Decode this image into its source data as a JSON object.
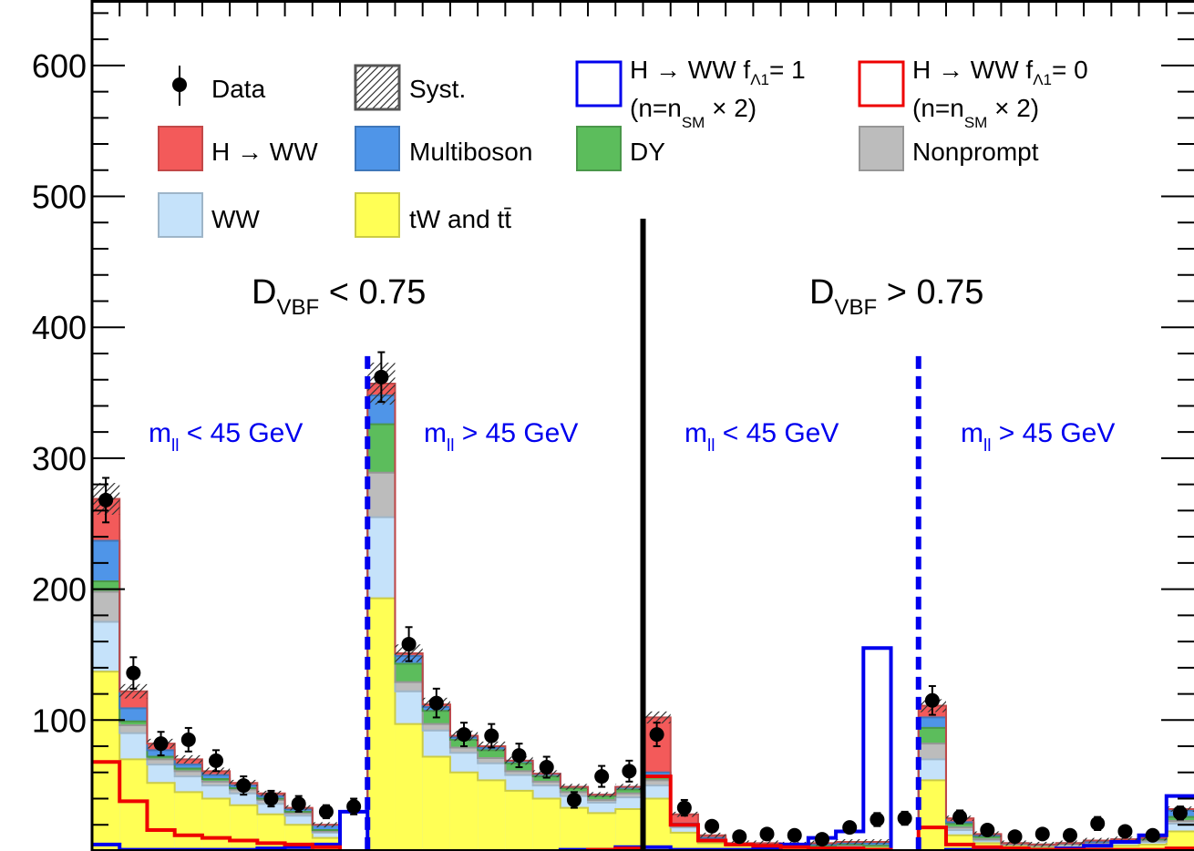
{
  "chart_data": {
    "type": "bar",
    "stacked": true,
    "title": "",
    "xlabel": "",
    "ylabel": "",
    "ylim": [
      0,
      650
    ],
    "y_ticks": [
      100,
      200,
      300,
      400,
      500,
      600
    ],
    "n_bins": 40,
    "legend": {
      "placement": "top",
      "entries": [
        {
          "key": "data",
          "label": "Data",
          "style": "marker"
        },
        {
          "key": "syst",
          "label": "Syst.",
          "style": "hatch"
        },
        {
          "key": "sig1",
          "label": "H → WW f",
          "sub": "Λ1",
          "suffix": "= 1",
          "line2": "(n=n",
          "line2_sub": "SM",
          "line2_suffix": " × 2)",
          "style": "line",
          "color": "#0000ee"
        },
        {
          "key": "sig0",
          "label": "H → WW f",
          "sub": "Λ1",
          "suffix": "= 0",
          "line2": "(n=n",
          "line2_sub": "SM",
          "line2_suffix": " × 2)",
          "style": "line",
          "color": "#ee0000"
        },
        {
          "key": "hww",
          "label": "H → WW",
          "style": "fill",
          "color": "#f35a5a"
        },
        {
          "key": "multiboson",
          "label": "Multiboson",
          "style": "fill",
          "color": "#4f95e8"
        },
        {
          "key": "dy",
          "label": "DY",
          "style": "fill",
          "color": "#5cbd5c"
        },
        {
          "key": "nonprompt",
          "label": "Nonprompt",
          "style": "fill",
          "color": "#bcbcbc"
        },
        {
          "key": "ww",
          "label": "WW",
          "style": "fill",
          "color": "#c5e2fa"
        },
        {
          "key": "top",
          "label": "tW and tt̄",
          "style": "fill",
          "color": "#ffff55"
        }
      ]
    },
    "regions": [
      {
        "label_main": "D",
        "label_sub": "VBF",
        "label_rest": " < 0.75"
      },
      {
        "label_main": "D",
        "label_sub": "VBF",
        "label_rest": " > 0.75"
      }
    ],
    "subregions": [
      {
        "label_main": "m",
        "label_sub": "ll",
        "label_rest": " < 45 GeV"
      },
      {
        "label_main": "m",
        "label_sub": "ll",
        "label_rest": " > 45 GeV"
      },
      {
        "label_main": "m",
        "label_sub": "ll",
        "label_rest": " < 45 GeV"
      },
      {
        "label_main": "m",
        "label_sub": "ll",
        "label_rest": " > 45 GeV"
      }
    ],
    "series": [
      {
        "name": "tW and tt̄",
        "key": "top",
        "values": [
          137,
          70,
          52,
          45,
          40,
          35,
          28,
          20,
          10,
          0,
          193,
          97,
          72,
          60,
          54,
          46,
          40,
          33,
          29,
          32,
          40,
          14,
          6,
          4,
          3,
          3,
          3,
          3,
          3,
          0,
          54,
          12,
          6,
          4,
          3,
          3,
          4,
          4,
          5,
          15
        ]
      },
      {
        "name": "WW",
        "key": "ww",
        "values": [
          38,
          20,
          14,
          12,
          10,
          9,
          8,
          7,
          4,
          0,
          62,
          25,
          20,
          15,
          13,
          12,
          10,
          9,
          8,
          9,
          10,
          4,
          2,
          1,
          1,
          1,
          1,
          1,
          1,
          0,
          16,
          4,
          2,
          1,
          1,
          2,
          2,
          2,
          2,
          6
        ]
      },
      {
        "name": "Nonprompt",
        "key": "nonprompt",
        "values": [
          23,
          6,
          4,
          4,
          3,
          3,
          3,
          2,
          1,
          0,
          34,
          7,
          5,
          4,
          4,
          3,
          3,
          3,
          2,
          3,
          4,
          1,
          1,
          0,
          0,
          0,
          0,
          0,
          0,
          0,
          12,
          2,
          1,
          0,
          0,
          0,
          0,
          1,
          1,
          2
        ]
      },
      {
        "name": "DY",
        "key": "dy",
        "values": [
          8,
          3,
          2,
          2,
          2,
          1,
          1,
          1,
          1,
          0,
          37,
          14,
          10,
          6,
          6,
          6,
          4,
          3,
          3,
          3,
          3,
          1,
          1,
          0,
          0,
          0,
          0,
          1,
          0,
          0,
          12,
          3,
          2,
          1,
          1,
          1,
          1,
          1,
          1,
          3
        ]
      },
      {
        "name": "Multiboson",
        "key": "multiboson",
        "values": [
          31,
          10,
          5,
          3,
          3,
          2,
          2,
          2,
          4,
          0,
          22,
          6,
          3,
          2,
          2,
          2,
          2,
          1,
          1,
          2,
          3,
          1,
          0,
          0,
          1,
          0,
          1,
          1,
          2,
          0,
          8,
          1,
          1,
          0,
          0,
          0,
          0,
          1,
          1,
          5
        ]
      },
      {
        "name": "H → WW",
        "key": "hww",
        "values": [
          32,
          13,
          5,
          4,
          3,
          2,
          2,
          1,
          0,
          0,
          9,
          2,
          2,
          1,
          1,
          0,
          0,
          0,
          0,
          0,
          42,
          7,
          2,
          1,
          1,
          1,
          1,
          1,
          1,
          0,
          9,
          3,
          1,
          0,
          0,
          0,
          1,
          0,
          0,
          1
        ]
      }
    ],
    "signal_fa1_1": [
      5,
      1,
      1,
      1,
      1,
      1,
      2,
      3,
      5,
      30,
      0,
      0,
      0,
      0,
      0,
      0,
      0,
      1,
      1,
      3,
      3,
      1,
      1,
      1,
      2,
      5,
      10,
      15,
      155,
      0,
      0,
      1,
      1,
      1,
      1,
      2,
      4,
      7,
      12,
      42
    ],
    "signal_fa1_0": [
      68,
      38,
      16,
      12,
      10,
      8,
      6,
      5,
      3,
      0,
      0,
      0,
      0,
      0,
      0,
      0,
      0,
      0,
      1,
      2,
      57,
      20,
      8,
      5,
      4,
      3,
      2,
      2,
      1,
      0,
      18,
      5,
      3,
      2,
      1,
      1,
      1,
      1,
      1,
      2
    ],
    "data": [
      268,
      136,
      82,
      85,
      69,
      50,
      40,
      36,
      30,
      34,
      362,
      158,
      113,
      89,
      88,
      73,
      64,
      39,
      57,
      61,
      89,
      33,
      19,
      11,
      13,
      12,
      9,
      18,
      24,
      25,
      115,
      26,
      16,
      11,
      13,
      12,
      21,
      15,
      12,
      29
    ],
    "data_err": [
      17,
      12,
      9,
      9,
      8,
      7,
      6,
      6,
      5,
      6,
      19,
      13,
      11,
      9,
      9,
      9,
      8,
      6,
      8,
      8,
      9,
      6,
      4,
      3,
      4,
      3,
      3,
      4,
      5,
      5,
      11,
      5,
      4,
      3,
      4,
      3,
      5,
      4,
      3,
      5
    ]
  }
}
